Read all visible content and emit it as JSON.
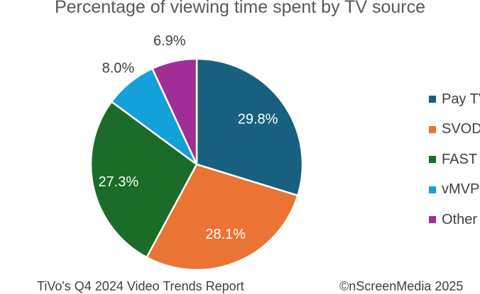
{
  "chart_data": {
    "type": "pie",
    "title": "Percentage of viewing time spent by TV source",
    "categories": [
      "Pay TV",
      "SVOD",
      "FAST",
      "vMVPD",
      "Other"
    ],
    "values": [
      29.8,
      28.1,
      27.3,
      8.0,
      6.9
    ],
    "labels": [
      "29.8%",
      "28.1%",
      "27.3%",
      "8.0%",
      "6.9%"
    ],
    "colors": [
      "#17607F",
      "#EA7433",
      "#1B6C28",
      "#14A0D8",
      "#A12E96"
    ],
    "label_colors": [
      "#ffffff",
      "#ffffff",
      "#ffffff",
      "#404040",
      "#404040"
    ],
    "start_angle_deg": 0,
    "direction": "clockwise",
    "legend_position": "right"
  },
  "footer": {
    "left": "TiVo's Q4 2024 Video Trends Report",
    "right": "©nScreenMedia 2025"
  }
}
